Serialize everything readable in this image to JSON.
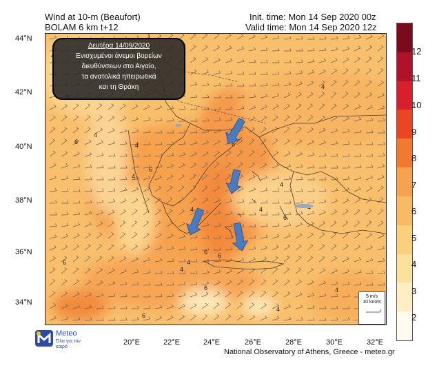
{
  "header": {
    "title_line1": "Wind at 10-m (Beaufort)",
    "title_line2": "BOLAM 6 km t+12",
    "init_time": "Init. time: Mon 14 Sep 2020 00z",
    "valid_time": "Valid time: Mon 14 Sep 2020 12z"
  },
  "annotation": {
    "title": "Δευτέρα 14/09/2020",
    "lines": [
      "Ενισχυμένοι άνεμοι βορείων",
      "διευθύνσεων στο Αιγαίο,",
      "τα ανατολικά ηπειρωτικά",
      "και τη Θράκη"
    ]
  },
  "lat_labels": [
    "44°N",
    "42°N",
    "40°N",
    "38°N",
    "36°N",
    "34°N"
  ],
  "lon_labels": [
    "20°E",
    "22°E",
    "24°E",
    "26°E",
    "28°E",
    "30°E",
    "32°E"
  ],
  "colorbar": {
    "labels": [
      "12",
      "11",
      "10",
      "9",
      "8",
      "7",
      "6",
      "5",
      "4",
      "3",
      "2"
    ],
    "colors": [
      "#7a0a1e",
      "#b0112b",
      "#d81f2c",
      "#ea4623",
      "#f27a30",
      "#f6a24e",
      "#f8bb63",
      "#fad07d",
      "#fbe09e",
      "#fdeec4",
      "#fffbee"
    ]
  },
  "contour_labels": [
    "4",
    "6",
    "6",
    "4",
    "4",
    "6",
    "4",
    "6",
    "4",
    "6",
    "4",
    "4",
    "6",
    "6",
    "4",
    "4",
    "6",
    "6",
    "4",
    "4",
    "6",
    "4",
    "4"
  ],
  "scale_legend": {
    "speed": "5 m/s",
    "knots": "10 knots"
  },
  "logo": {
    "name": "Meteo",
    "tagline": "Όλα για τον καιρό",
    "accent": "#2d4aa5"
  },
  "footer": "National Observatory of Athens, Greece - meteo.gr",
  "arrows_color": "#4a7bc0"
}
